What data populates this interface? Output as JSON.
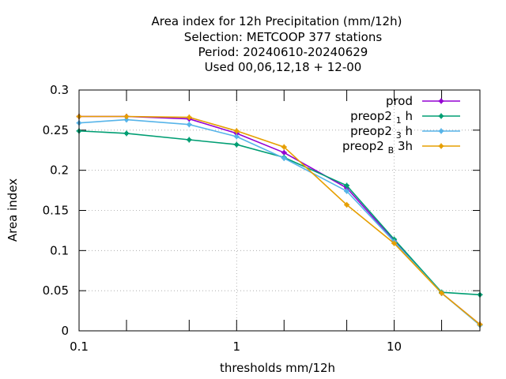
{
  "chart_data": {
    "type": "line",
    "title_lines": [
      "Area index  for 12h Precipitation (mm/12h)",
      "Selection: METCOOP    377 stations",
      "Period: 20240610-20240629",
      "Used  00,06,12,18 + 12-00"
    ],
    "xlabel": "thresholds mm/12h",
    "ylabel": "Area index",
    "x_scale": "log",
    "xlim": [
      0.1,
      35
    ],
    "ylim": [
      0,
      0.3
    ],
    "x_ticks": [
      {
        "value": 0.1,
        "label": "0.1"
      },
      {
        "value": 1,
        "label": "1"
      },
      {
        "value": 10,
        "label": "10"
      }
    ],
    "x_minor_ticks": [
      0.2,
      0.5,
      2,
      5,
      20,
      35
    ],
    "y_ticks": [
      {
        "value": 0,
        "label": "0"
      },
      {
        "value": 0.05,
        "label": "0.05"
      },
      {
        "value": 0.1,
        "label": "0.1"
      },
      {
        "value": 0.15,
        "label": "0.15"
      },
      {
        "value": 0.2,
        "label": "0.2"
      },
      {
        "value": 0.25,
        "label": "0.25"
      },
      {
        "value": 0.3,
        "label": "0.3"
      }
    ],
    "grid": true,
    "legend_position": "top-right",
    "x": [
      0.1,
      0.2,
      0.5,
      1,
      2,
      5,
      10,
      20,
      35
    ],
    "series": [
      {
        "name": "prod",
        "name_base": "prod",
        "name_sub": "",
        "name_suffix": "",
        "color": "#9400d3",
        "values": [
          0.267,
          0.267,
          0.264,
          0.246,
          0.222,
          0.178,
          0.112,
          0.047,
          0.008
        ]
      },
      {
        "name": "preop2 1 h",
        "name_base": "preop2",
        "name_sub": "1",
        "name_suffix": "h",
        "color": "#009e73",
        "values": [
          0.249,
          0.246,
          0.238,
          0.232,
          0.216,
          0.181,
          0.114,
          0.048,
          0.045
        ]
      },
      {
        "name": "preop2 3 h",
        "name_base": "preop2",
        "name_sub": "3",
        "name_suffix": "h",
        "color": "#56b4e9",
        "values": [
          0.259,
          0.263,
          0.257,
          0.242,
          0.215,
          0.174,
          0.111,
          0.047,
          0.007
        ]
      },
      {
        "name": "preop2 B 3h",
        "name_base": "preop2",
        "name_sub": "B",
        "name_suffix": "3h",
        "color": "#e69f00",
        "values": [
          0.267,
          0.267,
          0.266,
          0.249,
          0.229,
          0.157,
          0.109,
          0.047,
          0.008
        ]
      }
    ]
  }
}
